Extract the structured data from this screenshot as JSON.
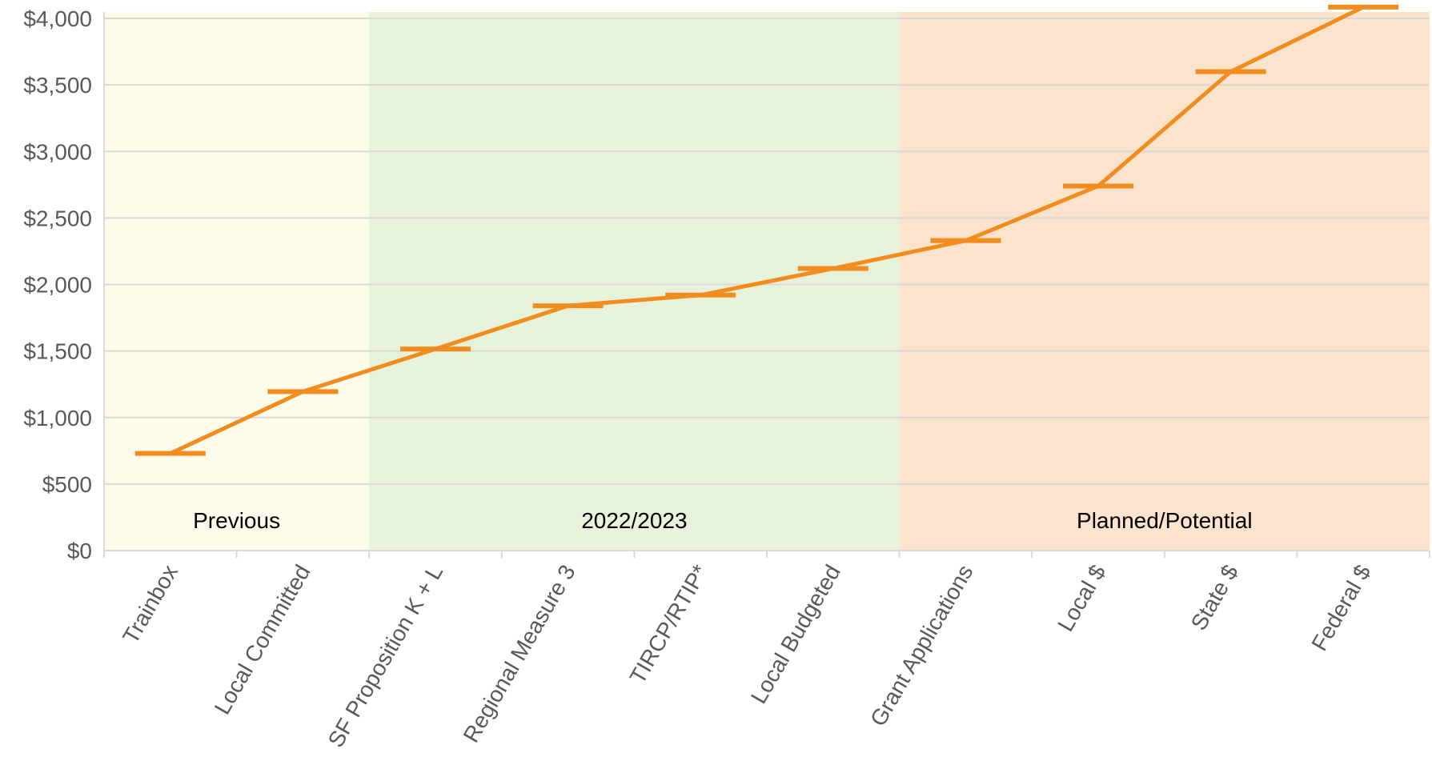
{
  "chart_data": {
    "type": "line",
    "title": "",
    "xlabel": "",
    "ylabel": "",
    "categories": [
      "Trainbox",
      "Local Committed",
      "SF Proposition K + L",
      "Regional Measure 3",
      "TIRCP/RTIP*",
      "Local Budgeted",
      "Grant Applications",
      "Local $",
      "State $",
      "Federal $"
    ],
    "values": [
      730,
      1195,
      1515,
      1840,
      1920,
      2120,
      2330,
      2740,
      3600,
      4085
    ],
    "ylim": [
      0,
      4000
    ],
    "yticks": [
      "$0",
      "$500",
      "$1,000",
      "$1,500",
      "$2,000",
      "$2,500",
      "$3,000",
      "$3,500",
      "$4,000"
    ],
    "ytick_values": [
      0,
      500,
      1000,
      1500,
      2000,
      2500,
      3000,
      3500,
      4000
    ],
    "grid": true,
    "bands": [
      {
        "label": "Previous",
        "start": 0,
        "end": 2,
        "color": "#fdfbea"
      },
      {
        "label": "2022/2023",
        "start": 2,
        "end": 6,
        "color": "#e7f2da"
      },
      {
        "label": "Planned/Potential",
        "start": 6,
        "end": 10,
        "color": "#fbe3cc"
      }
    ],
    "colors": {
      "line": "#f28c1e",
      "grid": "#d9d9d9",
      "axis": "#d9d9d9",
      "tick_text": "#595959"
    }
  }
}
